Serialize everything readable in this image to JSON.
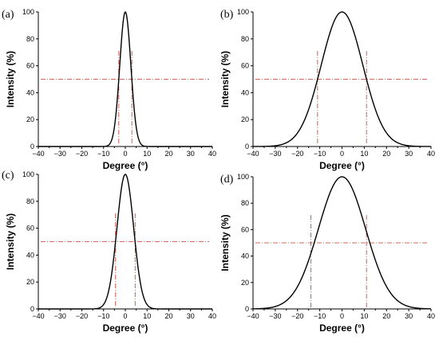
{
  "colors": {
    "curve": "#000000",
    "guide": "#c0392b",
    "axis": "#000000"
  },
  "chart_data": [
    {
      "type": "line",
      "panel_label": "(a)",
      "xlabel": "Degree (°)",
      "ylabel": "Intensity (%)",
      "xlim": [
        -40,
        40
      ],
      "ylim": [
        0,
        100
      ],
      "x_ticks": [
        -40,
        -30,
        -20,
        -10,
        0,
        10,
        20,
        30,
        40
      ],
      "y_ticks": [
        0,
        20,
        40,
        60,
        80,
        100
      ],
      "grid": false,
      "peak": 0,
      "fwhm": 6,
      "half_max": 50,
      "vlines": [
        -3,
        3
      ]
    },
    {
      "type": "line",
      "panel_label": "(b)",
      "xlabel": "Degree (°)",
      "ylabel": "Intensity (%)",
      "xlim": [
        -40,
        40
      ],
      "ylim": [
        0,
        100
      ],
      "x_ticks": [
        -40,
        -30,
        -20,
        -10,
        0,
        10,
        20,
        30,
        40
      ],
      "y_ticks": [
        0,
        20,
        40,
        60,
        80,
        100
      ],
      "grid": false,
      "peak": 0,
      "fwhm": 22,
      "half_max": 50,
      "vlines": [
        -11,
        11
      ]
    },
    {
      "type": "line",
      "panel_label": "(c)",
      "xlabel": "Degree (°)",
      "ylabel": "Intensity (%)",
      "xlim": [
        -40,
        40
      ],
      "ylim": [
        0,
        100
      ],
      "x_ticks": [
        -40,
        -30,
        -20,
        -10,
        0,
        10,
        20,
        30,
        40
      ],
      "y_ticks": [
        0,
        20,
        40,
        60,
        80,
        100
      ],
      "grid": false,
      "peak": 0,
      "fwhm": 9,
      "half_max": 50,
      "vlines": [
        -4.5,
        4.5
      ]
    },
    {
      "type": "line",
      "panel_label": "(d)",
      "xlabel": "Degree (°)",
      "ylabel": "Intensity (%)",
      "xlim": [
        -40,
        40
      ],
      "ylim": [
        0,
        100
      ],
      "x_ticks": [
        -40,
        -30,
        -20,
        -10,
        0,
        10,
        20,
        30,
        40
      ],
      "y_ticks": [
        0,
        20,
        40,
        60,
        80,
        100
      ],
      "grid": false,
      "peak": 0,
      "fwhm": 25,
      "half_max": 50,
      "vlines": [
        -14,
        11
      ]
    }
  ]
}
